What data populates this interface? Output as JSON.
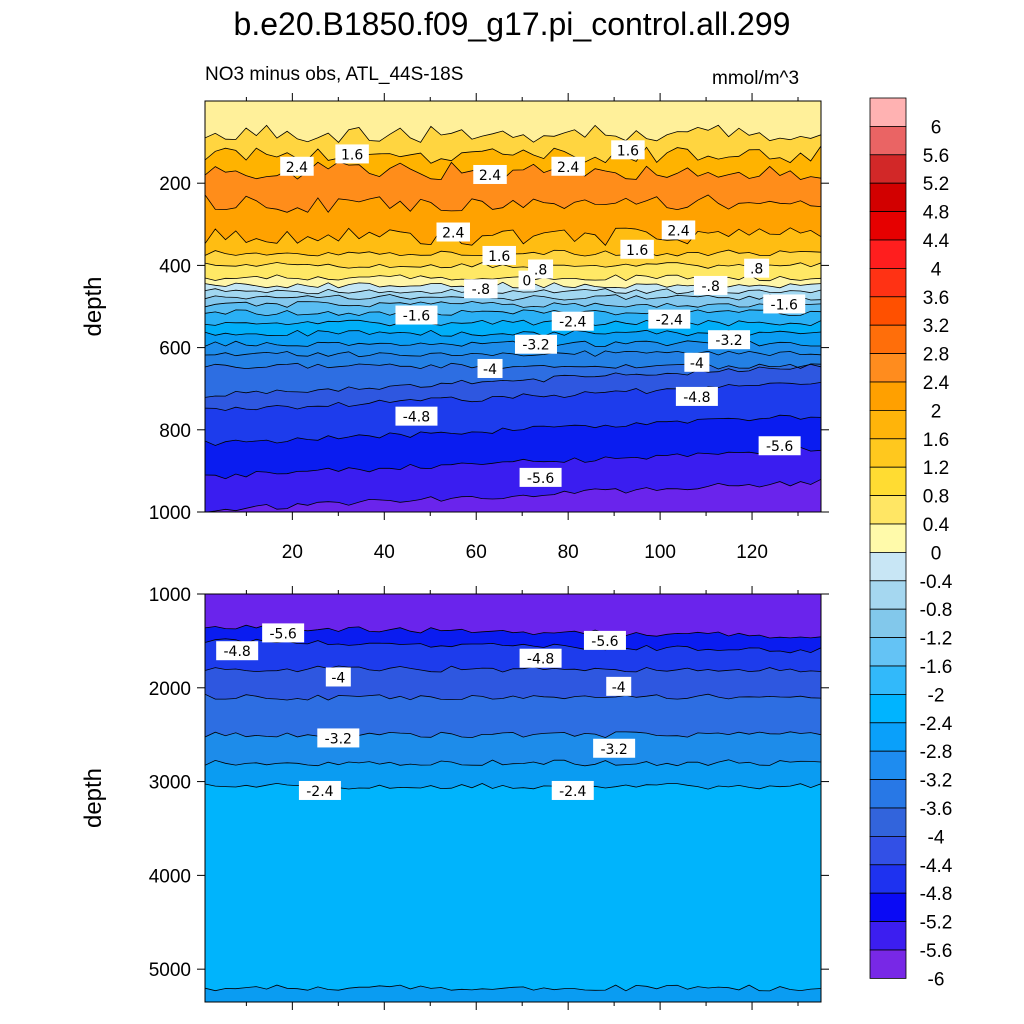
{
  "chart_data": [
    {
      "type": "contour",
      "title": "b.e20.B1850.f09_g17.pi_control.all.299",
      "subtitle": "NO3 minus obs, ATL_44S-18S",
      "units": "mmol/m^3",
      "ylabel": "depth",
      "xlim": [
        1,
        135
      ],
      "ylim": [
        1000,
        0
      ],
      "xticks": [
        20,
        40,
        60,
        80,
        100,
        120
      ],
      "yticks": [
        200,
        400,
        600,
        800,
        1000
      ],
      "bands": [
        {
          "from": 0,
          "to": 80,
          "color": "#fff09a"
        },
        {
          "from": 80,
          "to": 130,
          "color": "#ffd540"
        },
        {
          "from": 130,
          "to": 170,
          "color": "#ffb300"
        },
        {
          "from": 170,
          "to": 250,
          "color": "#ff8d1a"
        },
        {
          "from": 250,
          "to": 330,
          "color": "#ffa200"
        },
        {
          "from": 330,
          "to": 370,
          "color": "#ffbd12"
        },
        {
          "from": 370,
          "to": 400,
          "color": "#ffd540"
        },
        {
          "from": 400,
          "to": 430,
          "color": "#ffe865"
        },
        {
          "from": 430,
          "to": 448,
          "color": "#fff6a8"
        },
        {
          "from": 448,
          "to": 462,
          "color": "#c3e6f5"
        },
        {
          "from": 462,
          "to": 478,
          "color": "#a1d7f1"
        },
        {
          "from": 478,
          "to": 495,
          "color": "#84c8ee"
        },
        {
          "from": 495,
          "to": 515,
          "color": "#59bdf2"
        },
        {
          "from": 515,
          "to": 540,
          "color": "#2ab0f5"
        },
        {
          "from": 540,
          "to": 565,
          "color": "#00aef8"
        },
        {
          "from": 565,
          "to": 590,
          "color": "#0a9cf2"
        },
        {
          "from": 590,
          "to": 615,
          "color": "#1d8cea"
        },
        {
          "from": 615,
          "to": 645,
          "color": "#2380e4"
        },
        {
          "from": 645,
          "to": 680,
          "color": "#2d6ee2"
        },
        {
          "from": 680,
          "to": 720,
          "color": "#2e57e0"
        },
        {
          "from": 720,
          "to": 800,
          "color": "#1d3cec"
        },
        {
          "from": 800,
          "to": 880,
          "color": "#0a1cf0"
        },
        {
          "from": 880,
          "to": 960,
          "color": "#3a1df0"
        },
        {
          "from": 960,
          "to": 1000,
          "color": "#6a24ec"
        }
      ],
      "contour_labels": [
        {
          "text": "1.6",
          "x": 33,
          "y": 130
        },
        {
          "text": "2.4",
          "x": 21,
          "y": 160
        },
        {
          "text": "2.4",
          "x": 63,
          "y": 180
        },
        {
          "text": "2.4",
          "x": 80,
          "y": 160
        },
        {
          "text": "1.6",
          "x": 93,
          "y": 120
        },
        {
          "text": "2.4",
          "x": 55,
          "y": 320
        },
        {
          "text": "2.4",
          "x": 104,
          "y": 315
        },
        {
          "text": "1.6",
          "x": 65,
          "y": 377
        },
        {
          "text": "1.6",
          "x": 95,
          "y": 362
        },
        {
          "text": ".8",
          "x": 74,
          "y": 410
        },
        {
          "text": ".8",
          "x": 121,
          "y": 408
        },
        {
          "text": "0",
          "x": 71,
          "y": 437
        },
        {
          "text": "-.8",
          "x": 61,
          "y": 458
        },
        {
          "text": "-.8",
          "x": 111,
          "y": 450
        },
        {
          "text": "-1.6",
          "x": 47,
          "y": 522
        },
        {
          "text": "-1.6",
          "x": 127,
          "y": 495
        },
        {
          "text": "-2.4",
          "x": 81,
          "y": 537
        },
        {
          "text": "-2.4",
          "x": 102,
          "y": 532
        },
        {
          "text": "-3.2",
          "x": 73,
          "y": 593
        },
        {
          "text": "-3.2",
          "x": 115,
          "y": 582
        },
        {
          "text": "-4",
          "x": 63,
          "y": 652
        },
        {
          "text": "-4",
          "x": 108,
          "y": 637
        },
        {
          "text": "-4.8",
          "x": 47,
          "y": 768
        },
        {
          "text": "-4.8",
          "x": 108,
          "y": 720
        },
        {
          "text": "-5.6",
          "x": 74,
          "y": 917
        },
        {
          "text": "-5.6",
          "x": 126,
          "y": 840
        }
      ]
    },
    {
      "type": "contour",
      "ylabel": "depth",
      "xlim": [
        1,
        135
      ],
      "ylim": [
        5350,
        1000
      ],
      "yticks": [
        1000,
        2000,
        3000,
        4000,
        5000
      ],
      "bands": [
        {
          "from": 1000,
          "to": 1400,
          "color": "#6a24ec"
        },
        {
          "from": 1400,
          "to": 1550,
          "color": "#0a1cf0"
        },
        {
          "from": 1550,
          "to": 1800,
          "color": "#1d3cec"
        },
        {
          "from": 1800,
          "to": 2100,
          "color": "#2e57e0"
        },
        {
          "from": 2100,
          "to": 2500,
          "color": "#2d6ee2"
        },
        {
          "from": 2500,
          "to": 2800,
          "color": "#1d8cea"
        },
        {
          "from": 2800,
          "to": 3050,
          "color": "#0a9cf2"
        },
        {
          "from": 3050,
          "to": 5200,
          "color": "#00b4fc"
        },
        {
          "from": 5200,
          "to": 5350,
          "color": "#0a9cf2"
        }
      ],
      "contour_labels": [
        {
          "text": "-5.6",
          "x": 18,
          "y": 1420
        },
        {
          "text": "-5.6",
          "x": 88,
          "y": 1500
        },
        {
          "text": "-4.8",
          "x": 8,
          "y": 1610
        },
        {
          "text": "-4.8",
          "x": 74,
          "y": 1690
        },
        {
          "text": "-4",
          "x": 30,
          "y": 1890
        },
        {
          "text": "-4",
          "x": 91,
          "y": 1990
        },
        {
          "text": "-3.2",
          "x": 30,
          "y": 2540
        },
        {
          "text": "-3.2",
          "x": 90,
          "y": 2650
        },
        {
          "text": "-2.4",
          "x": 26,
          "y": 3100
        },
        {
          "text": "-2.4",
          "x": 81,
          "y": 3100
        }
      ]
    }
  ],
  "colorbar": {
    "levels": [
      {
        "label": "6",
        "color": "#ffb2b2"
      },
      {
        "label": "5.6",
        "color": "#ea6464"
      },
      {
        "label": "5.2",
        "color": "#d22828"
      },
      {
        "label": "4.8",
        "color": "#d20000"
      },
      {
        "label": "4.4",
        "color": "#e60000"
      },
      {
        "label": "4",
        "color": "#ff1e1e"
      },
      {
        "label": "3.6",
        "color": "#ff3214"
      },
      {
        "label": "3.2",
        "color": "#ff5000"
      },
      {
        "label": "2.8",
        "color": "#ff6e0a"
      },
      {
        "label": "2.4",
        "color": "#ff8c1e"
      },
      {
        "label": "2",
        "color": "#ffa000"
      },
      {
        "label": "1.6",
        "color": "#ffb40a"
      },
      {
        "label": "1.2",
        "color": "#ffc81e"
      },
      {
        "label": "0.8",
        "color": "#ffdc32"
      },
      {
        "label": "0.4",
        "color": "#ffe664"
      },
      {
        "label": "0",
        "color": "#fffaaa"
      },
      {
        "label": "-0.4",
        "color": "#c8e6f5"
      },
      {
        "label": "-0.8",
        "color": "#a5d7f0"
      },
      {
        "label": "-1.2",
        "color": "#82c8eb"
      },
      {
        "label": "-1.6",
        "color": "#64c3f5"
      },
      {
        "label": "-2",
        "color": "#32b9fa"
      },
      {
        "label": "-2.4",
        "color": "#00b4ff"
      },
      {
        "label": "-2.8",
        "color": "#0aa0fa"
      },
      {
        "label": "-3.2",
        "color": "#1e8cf0"
      },
      {
        "label": "-3.6",
        "color": "#2878e6"
      },
      {
        "label": "-4",
        "color": "#3264dc"
      },
      {
        "label": "-4.4",
        "color": "#3250e6"
      },
      {
        "label": "-4.8",
        "color": "#1e32f0"
      },
      {
        "label": "-5.2",
        "color": "#0a0af5"
      },
      {
        "label": "-5.6",
        "color": "#3c1ef0"
      },
      {
        "label": "-6",
        "color": "#7828e6"
      }
    ]
  }
}
